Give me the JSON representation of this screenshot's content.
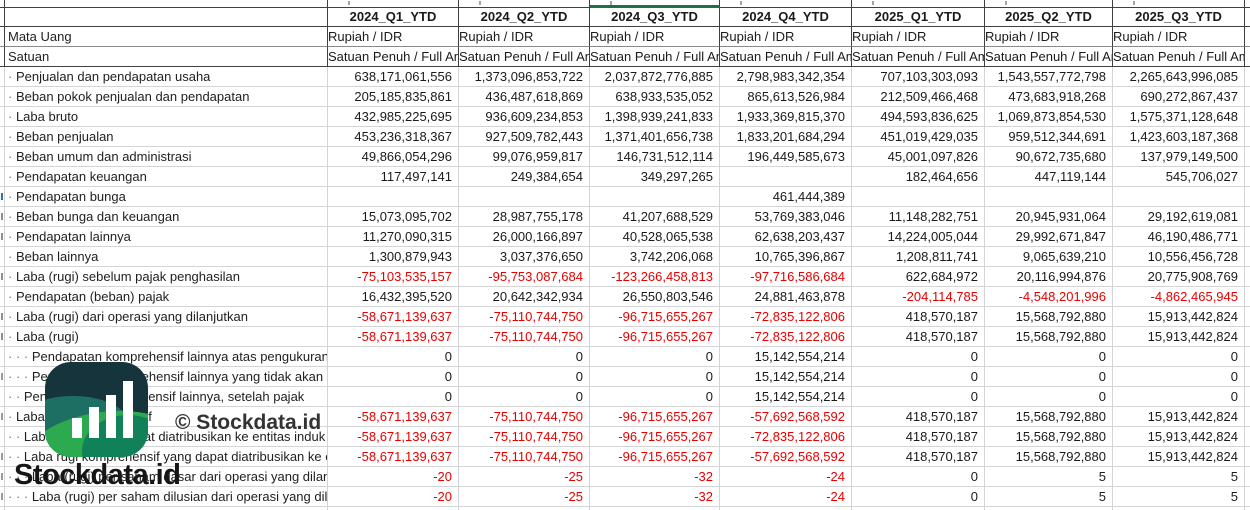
{
  "table": {
    "columns": [
      "2024_Q1_YTD",
      "2024_Q2_YTD",
      "2024_Q3_YTD",
      "2024_Q4_YTD",
      "2025_Q1_YTD",
      "2025_Q2_YTD",
      "2025_Q3_YTD"
    ],
    "selected_column": "2024_Q3_YTD",
    "currency_row": {
      "label": "Mata Uang",
      "value": "Rupiah / IDR"
    },
    "unit_row": {
      "label": "Satuan",
      "value": "Satuan Penuh / Full Amount"
    },
    "rows": [
      {
        "label": "Penjualan dan pendapatan usaha",
        "indent": 1,
        "values": [
          "638,171,061,556",
          "1,373,096,853,722",
          "2,037,872,776,885",
          "2,798,983,342,354",
          "707,103,303,093",
          "1,543,557,772,798",
          "2,265,643,996,085"
        ]
      },
      {
        "label": "Beban pokok penjualan dan pendapatan",
        "indent": 1,
        "values": [
          "205,185,835,861",
          "436,487,618,869",
          "638,933,535,052",
          "865,613,526,984",
          "212,509,466,468",
          "473,683,918,268",
          "690,272,867,437"
        ]
      },
      {
        "label": "Laba bruto",
        "indent": 1,
        "values": [
          "432,985,225,695",
          "936,609,234,853",
          "1,398,939,241,833",
          "1,933,369,815,370",
          "494,593,836,625",
          "1,069,873,854,530",
          "1,575,371,128,648"
        ]
      },
      {
        "label": "Beban penjualan",
        "indent": 1,
        "values": [
          "453,236,318,367",
          "927,509,782,443",
          "1,371,401,656,738",
          "1,833,201,684,294",
          "451,019,429,035",
          "959,512,344,691",
          "1,423,603,187,368"
        ]
      },
      {
        "label": "Beban umum dan administrasi",
        "indent": 1,
        "values": [
          "49,866,054,296",
          "99,076,959,817",
          "146,731,512,114",
          "196,449,585,673",
          "45,001,097,826",
          "90,672,735,680",
          "137,979,149,500"
        ]
      },
      {
        "label": "Pendapatan keuangan",
        "indent": 1,
        "values": [
          "117,497,141",
          "249,384,654",
          "349,297,265",
          "",
          "182,464,656",
          "447,119,144",
          "545,706,027"
        ]
      },
      {
        "label": "Pendapatan bunga",
        "indent": 1,
        "values": [
          "",
          "",
          "",
          "461,444,389",
          "",
          "",
          ""
        ]
      },
      {
        "label": "Beban bunga dan keuangan",
        "indent": 1,
        "values": [
          "15,073,095,702",
          "28,987,755,178",
          "41,207,688,529",
          "53,769,383,046",
          "11,148,282,751",
          "20,945,931,064",
          "29,192,619,081"
        ]
      },
      {
        "label": "Pendapatan lainnya",
        "indent": 1,
        "values": [
          "11,270,090,315",
          "26,000,166,897",
          "40,528,065,538",
          "62,638,203,437",
          "14,224,005,044",
          "29,992,671,847",
          "46,190,486,771"
        ]
      },
      {
        "label": "Beban lainnya",
        "indent": 1,
        "values": [
          "1,300,879,943",
          "3,037,376,650",
          "3,742,206,068",
          "10,765,396,867",
          "1,208,811,741",
          "9,065,639,210",
          "10,556,456,728"
        ]
      },
      {
        "label": "Laba (rugi) sebelum pajak penghasilan",
        "indent": 1,
        "values": [
          "-75,103,535,157",
          "-95,753,087,684",
          "-123,266,458,813",
          "-97,716,586,684",
          "622,684,972",
          "20,116,994,876",
          "20,775,908,769"
        ]
      },
      {
        "label": "Pendapatan (beban) pajak",
        "indent": 1,
        "values": [
          "16,432,395,520",
          "20,642,342,934",
          "26,550,803,546",
          "24,881,463,878",
          "-204,114,785",
          "-4,548,201,996",
          "-4,862,465,945"
        ]
      },
      {
        "label": "Laba (rugi) dari operasi yang dilanjutkan",
        "indent": 1,
        "values": [
          "-58,671,139,637",
          "-75,110,744,750",
          "-96,715,655,267",
          "-72,835,122,806",
          "418,570,187",
          "15,568,792,880",
          "15,913,442,824"
        ]
      },
      {
        "label": "Laba (rugi)",
        "indent": 1,
        "values": [
          "-58,671,139,637",
          "-75,110,744,750",
          "-96,715,655,267",
          "-72,835,122,806",
          "418,570,187",
          "15,568,792,880",
          "15,913,442,824"
        ]
      },
      {
        "label": "Pendapatan komprehensif lainnya atas pengukuran kembali program imbalan pasti",
        "indent": 3,
        "values": [
          "0",
          "0",
          "0",
          "15,142,554,214",
          "0",
          "0",
          "0"
        ]
      },
      {
        "label": "Pendapatan komprehensif lainnya yang tidak akan direklasifikasi ke laba rugi",
        "indent": 3,
        "values": [
          "0",
          "0",
          "0",
          "15,142,554,214",
          "0",
          "0",
          "0"
        ]
      },
      {
        "label": "Pendapatan komprehensif lainnya, setelah pajak",
        "indent": 2,
        "values": [
          "0",
          "0",
          "0",
          "15,142,554,214",
          "0",
          "0",
          "0"
        ]
      },
      {
        "label": "Laba rugi komprehensif",
        "indent": 1,
        "values": [
          "-58,671,139,637",
          "-75,110,744,750",
          "-96,715,655,267",
          "-57,692,568,592",
          "418,570,187",
          "15,568,792,880",
          "15,913,442,824"
        ]
      },
      {
        "label": "Laba (rugi) yang dapat diatribusikan ke entitas induk",
        "indent": 2,
        "values": [
          "-58,671,139,637",
          "-75,110,744,750",
          "-96,715,655,267",
          "-72,835,122,806",
          "418,570,187",
          "15,568,792,880",
          "15,913,442,824"
        ]
      },
      {
        "label": "Laba rugi komprehensif yang dapat diatribusikan ke entitas induk",
        "indent": 2,
        "values": [
          "-58,671,139,637",
          "-75,110,744,750",
          "-96,715,655,267",
          "-57,692,568,592",
          "418,570,187",
          "15,568,792,880",
          "15,913,442,824"
        ]
      },
      {
        "label": "Laba (rugi) per saham dasar dari operasi yang dilanjutkan",
        "indent": 3,
        "values": [
          "-20",
          "-25",
          "-32",
          "-24",
          "0",
          "5",
          "5"
        ]
      },
      {
        "label": "Laba (rugi) per saham dilusian dari operasi yang dilanjutkan",
        "indent": 3,
        "values": [
          "-20",
          "-25",
          "-32",
          "-24",
          "0",
          "5",
          "5"
        ]
      }
    ]
  },
  "watermark": {
    "brand_text": "Stockdata.id",
    "copyright_text": "© Stockdata.id"
  },
  "colors": {
    "negative_text": "#e60000",
    "selection_green": "#1E7145",
    "grid_light": "#d4d4d4",
    "grid_dark": "#404040",
    "logo_dark_teal": "#16343B",
    "logo_teal": "#1E6F63",
    "logo_green": "#2BAA50",
    "logo_deep_green": "#11815A"
  }
}
